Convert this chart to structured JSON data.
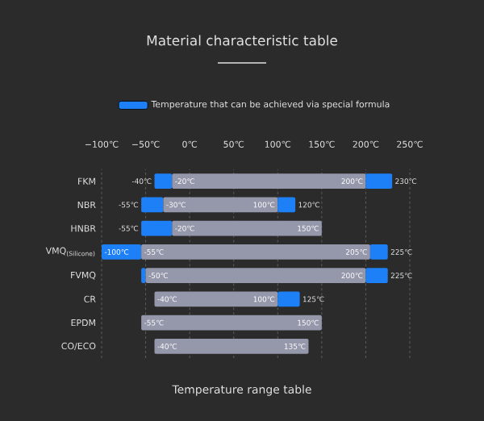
{
  "chart_data": {
    "type": "bar",
    "orientation": "horizontal",
    "title": "Material characteristic table",
    "categories": [
      "FKM",
      "NBR",
      "HNBR",
      "VMQ$_{(Silicone)}$",
      "FVMQ",
      "CR",
      "EPDM",
      "CO/ECO"
    ],
    "series": [
      {
        "name": "Temperature that can be achieved via special formula",
        "color": "#1e80f6",
        "base": [
          -40,
          -55,
          -55,
          -100,
          -55,
          null,
          null,
          null
        ],
        "values": [
          20,
          25,
          35,
          45,
          5,
          null,
          null,
          null
        ]
      },
      {
        "color": "#9597aa",
        "base": [
          -20,
          -30,
          -20,
          -55,
          -50,
          -40,
          -55,
          -40
        ],
        "values": [
          220,
          130,
          170,
          260,
          250,
          140,
          205,
          175
        ]
      },
      {
        "color": "#1e80f6",
        "base": [
          200,
          100,
          null,
          205,
          200,
          100,
          null,
          null
        ],
        "values": [
          30,
          20,
          null,
          20,
          25,
          25,
          null,
          null
        ]
      }
    ],
    "xlim": [
      -100,
      250
    ],
    "xticks": [
      {
        "value": -100,
        "label": "−100℃"
      },
      {
        "value": -50,
        "label": "−50℃"
      },
      {
        "value": 0,
        "label": "0℃"
      },
      {
        "value": 50,
        "label": "50℃"
      },
      {
        "value": 100,
        "label": "100℃"
      },
      {
        "value": 150,
        "label": "150℃"
      },
      {
        "value": 200,
        "label": "200℃"
      },
      {
        "value": 250,
        "label": "250℃"
      }
    ],
    "grid": "x",
    "legend": "top",
    "annotations": [
      {
        "text": "-40℃",
        "x": -40,
        "y": "FKM"
      },
      {
        "text": "-20℃",
        "x": -20,
        "y": "FKM"
      },
      {
        "text": "200℃",
        "x": 200,
        "y": "FKM"
      },
      {
        "text": "230℃",
        "x": 230,
        "y": "FKM"
      },
      {
        "text": "-55℃",
        "x": -55,
        "y": "NBR"
      },
      {
        "text": "-30℃",
        "x": -30,
        "y": "NBR"
      },
      {
        "text": "100℃",
        "x": 100,
        "y": "NBR"
      },
      {
        "text": "120℃",
        "x": 120,
        "y": "NBR"
      },
      {
        "text": "-55℃",
        "x": -55,
        "y": "HNBR"
      },
      {
        "text": "-20℃",
        "x": -20,
        "y": "HNBR"
      },
      {
        "text": "150℃",
        "x": 150,
        "y": "HNBR"
      },
      {
        "text": "-100℃",
        "x": -100,
        "y": "VMQ$_{(Silicone)}$"
      },
      {
        "text": "-55℃",
        "x": -55,
        "y": "VMQ$_{(Silicone)}$"
      },
      {
        "text": "205℃",
        "x": 205,
        "y": "VMQ$_{(Silicone)}$"
      },
      {
        "text": "225℃",
        "x": 225,
        "y": "VMQ$_{(Silicone)}$"
      },
      {
        "text": "-50℃",
        "x": -50,
        "y": "FVMQ"
      },
      {
        "text": "200℃",
        "x": 200,
        "y": "FVMQ"
      },
      {
        "text": "225℃",
        "x": 225,
        "y": "FVMQ"
      },
      {
        "text": "-40℃",
        "x": -40,
        "y": "CR"
      },
      {
        "text": "100℃",
        "x": 100,
        "y": "CR"
      },
      {
        "text": "125℃",
        "x": 125,
        "y": "CR"
      },
      {
        "text": "-55℃",
        "x": -55,
        "y": "EPDM"
      },
      {
        "text": "150℃",
        "x": 150,
        "y": "EPDM"
      },
      {
        "text": "-40℃",
        "x": -40,
        "y": "CO/ECO"
      },
      {
        "text": "135℃",
        "x": 135,
        "y": "CO/ECO"
      },
      "Temperature range table"
    ]
  }
}
